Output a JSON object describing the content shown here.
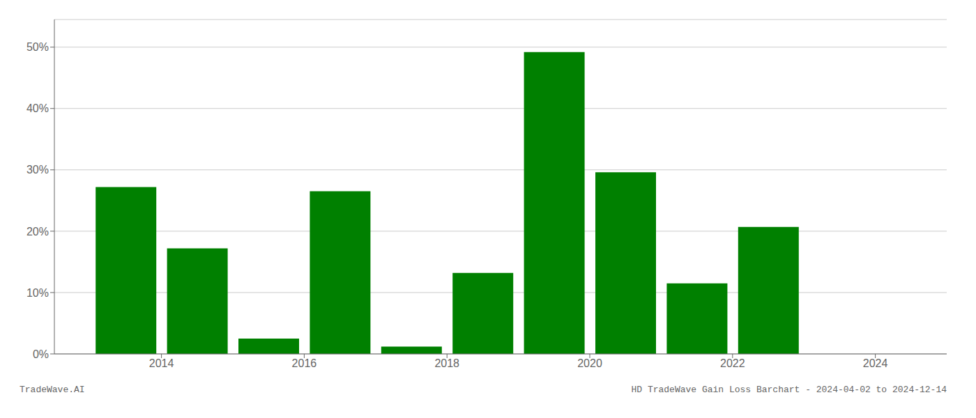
{
  "chart_data": {
    "type": "bar",
    "x": [
      2013.5,
      2014.5,
      2015.5,
      2016.5,
      2017.5,
      2018.5,
      2019.5,
      2020.5,
      2021.5,
      2022.5,
      2023.5
    ],
    "values": [
      0.272,
      0.172,
      0.025,
      0.265,
      0.012,
      0.132,
      0.492,
      0.296,
      0.115,
      0.207,
      0.0
    ],
    "color": "#008000",
    "xlim": [
      2012.5,
      2025.0
    ],
    "xticks": [
      2014,
      2016,
      2018,
      2020,
      2022,
      2024
    ],
    "ylim": [
      0,
      0.545
    ],
    "yticks": [
      {
        "value": 0.0,
        "label": "0%"
      },
      {
        "value": 0.1,
        "label": "10%"
      },
      {
        "value": 0.2,
        "label": "20%"
      },
      {
        "value": 0.3,
        "label": "30%"
      },
      {
        "value": 0.4,
        "label": "40%"
      },
      {
        "value": 0.5,
        "label": "50%"
      }
    ],
    "grid": true,
    "annotations": [
      "TradeWave.AI",
      "HD TradeWave Gain Loss Barchart - 2024-04-02 to 2024-12-14"
    ]
  }
}
